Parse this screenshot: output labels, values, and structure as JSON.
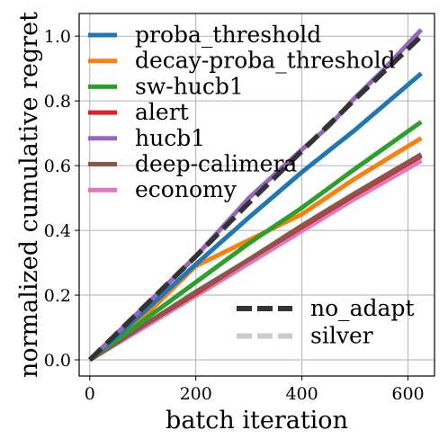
{
  "chart_data": {
    "type": "line",
    "xlabel": "batch iteration",
    "ylabel": "normalized cumulative regret",
    "xlim": [
      -20,
      650
    ],
    "ylim": [
      -0.05,
      1.07
    ],
    "xticks": [
      0,
      200,
      400,
      600
    ],
    "yticks": [
      0.0,
      0.2,
      0.4,
      0.6,
      0.8,
      1.0
    ],
    "xtick_labels": [
      "0",
      "200",
      "400",
      "600"
    ],
    "ytick_labels": [
      "0.0",
      "0.2",
      "0.4",
      "0.6",
      "0.8",
      "1.0"
    ],
    "grid": true,
    "legends": [
      {
        "placement": "top-left",
        "entries": [
          {
            "name": "proba_threshold",
            "color": "#1f77b4",
            "style": "solid"
          },
          {
            "name": "decay-proba_threshold",
            "color": "#ff7f0e",
            "style": "solid"
          },
          {
            "name": "sw-hucb1",
            "color": "#2ca02c",
            "style": "solid"
          },
          {
            "name": "alert",
            "color": "#d62728",
            "style": "solid"
          },
          {
            "name": "hucb1",
            "color": "#9467bd",
            "style": "solid"
          },
          {
            "name": "deep-calimera",
            "color": "#8c564b",
            "style": "solid"
          },
          {
            "name": "economy",
            "color": "#e377c2",
            "style": "solid"
          }
        ]
      },
      {
        "placement": "bottom-right",
        "entries": [
          {
            "name": "no_adapt",
            "color": "#333333",
            "style": "dashed"
          },
          {
            "name": "silver",
            "color": "#cccccc",
            "style": "dashed"
          }
        ]
      }
    ],
    "series": [
      {
        "name": "silver",
        "color": "#cccccc",
        "style": "dashed",
        "x": [
          0,
          100,
          200,
          300,
          400,
          500,
          625
        ],
        "y": [
          0,
          0.1,
          0.2,
          0.3,
          0.4,
          0.5,
          0.62
        ]
      },
      {
        "name": "economy",
        "color": "#e377c2",
        "style": "solid",
        "x": [
          0,
          100,
          200,
          300,
          400,
          500,
          625
        ],
        "y": [
          0,
          0.098,
          0.198,
          0.298,
          0.398,
          0.498,
          0.615
        ]
      },
      {
        "name": "alert",
        "color": "#d62728",
        "style": "solid",
        "x": [
          0,
          100,
          200,
          300,
          400,
          500,
          625
        ],
        "y": [
          0,
          0.105,
          0.205,
          0.31,
          0.41,
          0.51,
          0.63
        ]
      },
      {
        "name": "deep-calimera",
        "color": "#8c564b",
        "style": "solid",
        "x": [
          0,
          100,
          200,
          300,
          400,
          500,
          625
        ],
        "y": [
          0,
          0.105,
          0.21,
          0.31,
          0.415,
          0.515,
          0.635
        ]
      },
      {
        "name": "decay-proba_threshold",
        "color": "#ff7f0e",
        "style": "solid",
        "x": [
          0,
          100,
          200,
          250,
          300,
          400,
          500,
          625
        ],
        "y": [
          0,
          0.13,
          0.29,
          0.33,
          0.37,
          0.45,
          0.56,
          0.685
        ]
      },
      {
        "name": "sw-hucb1",
        "color": "#2ca02c",
        "style": "solid",
        "x": [
          0,
          100,
          200,
          300,
          400,
          500,
          625
        ],
        "y": [
          0,
          0.12,
          0.24,
          0.36,
          0.47,
          0.59,
          0.735
        ]
      },
      {
        "name": "proba_threshold",
        "color": "#1f77b4",
        "style": "solid",
        "x": [
          0,
          100,
          200,
          300,
          400,
          500,
          625
        ],
        "y": [
          0,
          0.145,
          0.295,
          0.44,
          0.58,
          0.71,
          0.885
        ]
      },
      {
        "name": "hucb1",
        "color": "#9467bd",
        "style": "solid",
        "x": [
          0,
          100,
          200,
          300,
          400,
          450,
          500,
          550,
          625
        ],
        "y": [
          0,
          0.16,
          0.32,
          0.5,
          0.65,
          0.72,
          0.81,
          0.89,
          1.02
        ]
      },
      {
        "name": "no_adapt",
        "color": "#333333",
        "style": "dashed",
        "x": [
          0,
          100,
          200,
          300,
          400,
          500,
          625
        ],
        "y": [
          0,
          0.16,
          0.32,
          0.485,
          0.645,
          0.805,
          1.0
        ]
      }
    ]
  }
}
